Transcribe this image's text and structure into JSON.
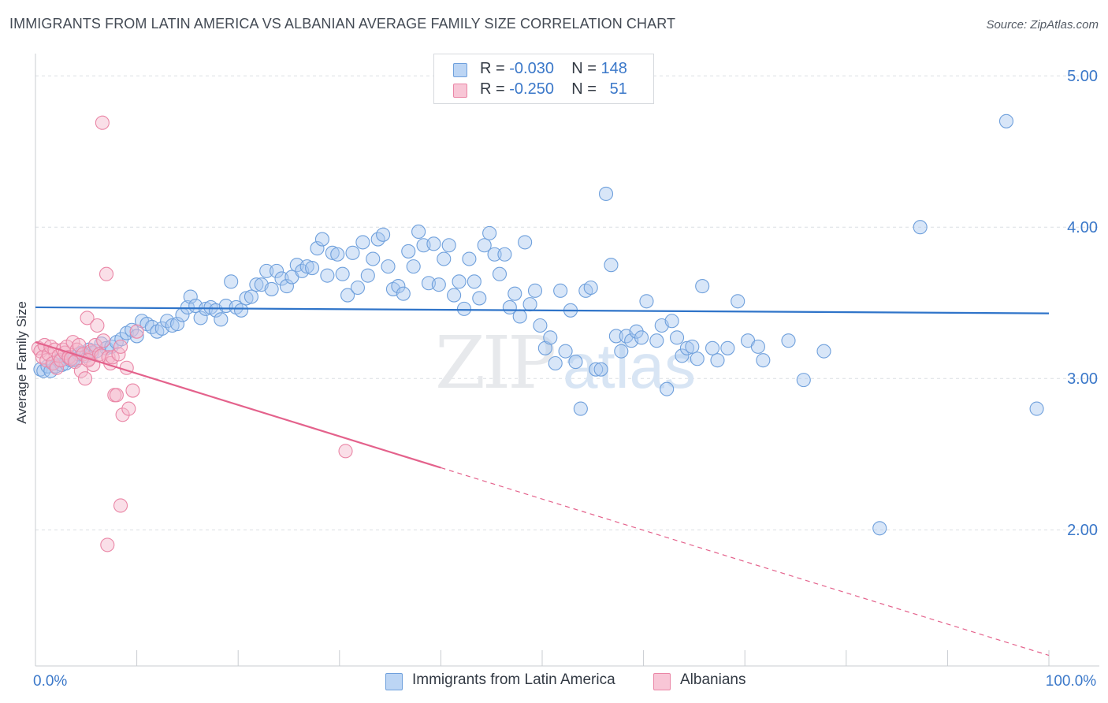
{
  "title": "IMMIGRANTS FROM LATIN AMERICA VS ALBANIAN AVERAGE FAMILY SIZE CORRELATION CHART",
  "source": "Source: ZipAtlas.com",
  "watermark": {
    "zip": "ZIP",
    "atlas": "atlas"
  },
  "colors": {
    "blue_fill": "#a8c8f0",
    "blue_stroke": "#6fa0dc",
    "blue_line": "#2f74c9",
    "pink_fill": "#f5b9cc",
    "pink_stroke": "#ea86a6",
    "pink_line": "#e4628c",
    "axis_text": "#3b78c9",
    "grid": "#dcdfe4"
  },
  "legend": {
    "rows": [
      {
        "r_label": "R =",
        "r_value": "-0.030",
        "n_label": "N =",
        "n_value": "148",
        "series": "blue"
      },
      {
        "r_label": "R =",
        "r_value": "-0.250",
        "n_label": "N =",
        "n_value": "51",
        "series": "pink"
      }
    ]
  },
  "bottom_legend": [
    {
      "label": "Immigrants from Latin America",
      "series": "blue"
    },
    {
      "label": "Albanians",
      "series": "pink"
    }
  ],
  "chart_data": {
    "type": "scatter",
    "title": "IMMIGRANTS FROM LATIN AMERICA VS ALBANIAN AVERAGE FAMILY SIZE CORRELATION CHART",
    "xlabel": "",
    "ylabel": "Average Family Size",
    "xlim": [
      0,
      100
    ],
    "ylim": [
      1.1,
      5.1
    ],
    "x_tick_labels": [
      {
        "value": 0,
        "label": "0.0%"
      },
      {
        "value": 100,
        "label": "100.0%"
      }
    ],
    "y_tick_labels": [
      {
        "value": 2.0,
        "label": "2.00"
      },
      {
        "value": 3.0,
        "label": "3.00"
      },
      {
        "value": 4.0,
        "label": "4.00"
      },
      {
        "value": 5.0,
        "label": "5.00"
      }
    ],
    "grid": true,
    "series": [
      {
        "name": "Immigrants from Latin America",
        "color": "blue",
        "trend": {
          "x": [
            0,
            100
          ],
          "y": [
            3.47,
            3.43
          ]
        },
        "points": [
          [
            0.5,
            3.06
          ],
          [
            0.8,
            3.05
          ],
          [
            1.2,
            3.08
          ],
          [
            1.5,
            3.05
          ],
          [
            1.8,
            3.1
          ],
          [
            2.0,
            3.08
          ],
          [
            2.3,
            3.12
          ],
          [
            2.6,
            3.09
          ],
          [
            3.0,
            3.1
          ],
          [
            3.2,
            3.14
          ],
          [
            3.5,
            3.12
          ],
          [
            3.8,
            3.13
          ],
          [
            4.0,
            3.12
          ],
          [
            4.3,
            3.16
          ],
          [
            4.6,
            3.17
          ],
          [
            5.0,
            3.15
          ],
          [
            5.3,
            3.19
          ],
          [
            5.6,
            3.17
          ],
          [
            6.0,
            3.18
          ],
          [
            6.5,
            3.23
          ],
          [
            7.0,
            3.2
          ],
          [
            7.5,
            3.21
          ],
          [
            8.0,
            3.24
          ],
          [
            8.5,
            3.26
          ],
          [
            9.0,
            3.3
          ],
          [
            9.5,
            3.32
          ],
          [
            10.0,
            3.28
          ],
          [
            10.5,
            3.38
          ],
          [
            11.0,
            3.36
          ],
          [
            11.5,
            3.34
          ],
          [
            12.0,
            3.31
          ],
          [
            12.5,
            3.33
          ],
          [
            13.0,
            3.38
          ],
          [
            13.5,
            3.35
          ],
          [
            14.0,
            3.36
          ],
          [
            14.5,
            3.42
          ],
          [
            15.0,
            3.47
          ],
          [
            15.3,
            3.54
          ],
          [
            15.8,
            3.48
          ],
          [
            16.3,
            3.4
          ],
          [
            16.8,
            3.46
          ],
          [
            17.3,
            3.47
          ],
          [
            17.8,
            3.45
          ],
          [
            18.3,
            3.39
          ],
          [
            18.8,
            3.48
          ],
          [
            19.3,
            3.64
          ],
          [
            19.8,
            3.47
          ],
          [
            20.3,
            3.45
          ],
          [
            20.8,
            3.53
          ],
          [
            21.3,
            3.54
          ],
          [
            21.8,
            3.62
          ],
          [
            22.3,
            3.62
          ],
          [
            22.8,
            3.71
          ],
          [
            23.3,
            3.59
          ],
          [
            23.8,
            3.71
          ],
          [
            24.3,
            3.66
          ],
          [
            24.8,
            3.61
          ],
          [
            25.3,
            3.67
          ],
          [
            25.8,
            3.75
          ],
          [
            26.3,
            3.71
          ],
          [
            26.8,
            3.74
          ],
          [
            27.3,
            3.73
          ],
          [
            27.8,
            3.86
          ],
          [
            28.3,
            3.92
          ],
          [
            28.8,
            3.68
          ],
          [
            29.3,
            3.83
          ],
          [
            29.8,
            3.82
          ],
          [
            30.3,
            3.69
          ],
          [
            30.8,
            3.55
          ],
          [
            31.3,
            3.83
          ],
          [
            31.8,
            3.6
          ],
          [
            32.3,
            3.9
          ],
          [
            32.8,
            3.68
          ],
          [
            33.3,
            3.79
          ],
          [
            33.8,
            3.92
          ],
          [
            34.3,
            3.95
          ],
          [
            34.8,
            3.74
          ],
          [
            35.3,
            3.59
          ],
          [
            35.8,
            3.61
          ],
          [
            36.3,
            3.56
          ],
          [
            36.8,
            3.84
          ],
          [
            37.3,
            3.74
          ],
          [
            37.8,
            3.97
          ],
          [
            38.3,
            3.88
          ],
          [
            38.8,
            3.63
          ],
          [
            39.3,
            3.89
          ],
          [
            39.8,
            3.62
          ],
          [
            40.3,
            3.79
          ],
          [
            40.8,
            3.88
          ],
          [
            41.3,
            3.55
          ],
          [
            41.8,
            3.64
          ],
          [
            42.3,
            3.46
          ],
          [
            42.8,
            3.79
          ],
          [
            43.3,
            3.64
          ],
          [
            43.8,
            3.53
          ],
          [
            44.3,
            3.88
          ],
          [
            44.8,
            3.96
          ],
          [
            45.3,
            3.82
          ],
          [
            45.8,
            3.69
          ],
          [
            46.3,
            3.82
          ],
          [
            46.8,
            3.47
          ],
          [
            47.3,
            3.56
          ],
          [
            47.8,
            3.41
          ],
          [
            48.3,
            3.9
          ],
          [
            48.8,
            3.49
          ],
          [
            49.3,
            3.58
          ],
          [
            49.8,
            3.35
          ],
          [
            50.3,
            3.2
          ],
          [
            50.8,
            3.27
          ],
          [
            51.3,
            3.1
          ],
          [
            51.8,
            3.58
          ],
          [
            52.3,
            3.18
          ],
          [
            52.8,
            3.45
          ],
          [
            53.3,
            3.11
          ],
          [
            53.8,
            2.8
          ],
          [
            54.3,
            3.58
          ],
          [
            54.8,
            3.6
          ],
          [
            55.3,
            3.06
          ],
          [
            55.8,
            3.06
          ],
          [
            56.3,
            4.22
          ],
          [
            56.8,
            3.75
          ],
          [
            57.3,
            3.28
          ],
          [
            57.8,
            3.18
          ],
          [
            58.3,
            3.28
          ],
          [
            58.8,
            3.25
          ],
          [
            59.3,
            3.31
          ],
          [
            59.8,
            3.27
          ],
          [
            60.3,
            3.51
          ],
          [
            61.3,
            3.25
          ],
          [
            61.8,
            3.35
          ],
          [
            62.3,
            2.93
          ],
          [
            62.8,
            3.38
          ],
          [
            63.3,
            3.27
          ],
          [
            63.8,
            3.15
          ],
          [
            64.3,
            3.2
          ],
          [
            64.8,
            3.21
          ],
          [
            65.3,
            3.13
          ],
          [
            65.8,
            3.61
          ],
          [
            66.8,
            3.2
          ],
          [
            67.3,
            3.12
          ],
          [
            68.3,
            3.2
          ],
          [
            69.3,
            3.51
          ],
          [
            70.3,
            3.25
          ],
          [
            71.3,
            3.21
          ],
          [
            71.8,
            3.12
          ],
          [
            75.8,
            2.99
          ],
          [
            77.8,
            3.18
          ],
          [
            87.3,
            4.0
          ],
          [
            83.3,
            2.01
          ],
          [
            95.8,
            4.7
          ],
          [
            98.8,
            2.8
          ],
          [
            74.3,
            3.25
          ]
        ]
      },
      {
        "name": "Albanians",
        "color": "pink",
        "trend": {
          "x": [
            0,
            40
          ],
          "y": [
            3.24,
            2.41
          ]
        },
        "trend_dashed": {
          "x": [
            40,
            100
          ],
          "y": [
            2.41,
            1.17
          ]
        },
        "points": [
          [
            0.3,
            3.2
          ],
          [
            0.5,
            3.18
          ],
          [
            0.7,
            3.14
          ],
          [
            0.9,
            3.22
          ],
          [
            1.1,
            3.12
          ],
          [
            1.3,
            3.16
          ],
          [
            1.5,
            3.21
          ],
          [
            1.7,
            3.1
          ],
          [
            1.9,
            3.19
          ],
          [
            2.1,
            3.07
          ],
          [
            2.3,
            3.15
          ],
          [
            2.5,
            3.12
          ],
          [
            2.7,
            3.19
          ],
          [
            2.9,
            3.17
          ],
          [
            3.1,
            3.21
          ],
          [
            3.3,
            3.14
          ],
          [
            3.5,
            3.13
          ],
          [
            3.7,
            3.24
          ],
          [
            3.9,
            3.11
          ],
          [
            4.1,
            3.19
          ],
          [
            4.3,
            3.22
          ],
          [
            4.5,
            3.05
          ],
          [
            4.7,
            3.16
          ],
          [
            4.9,
            3.0
          ],
          [
            5.1,
            3.4
          ],
          [
            5.3,
            3.13
          ],
          [
            5.5,
            3.18
          ],
          [
            5.7,
            3.09
          ],
          [
            5.9,
            3.22
          ],
          [
            6.1,
            3.35
          ],
          [
            6.3,
            3.16
          ],
          [
            5.2,
            3.12
          ],
          [
            6.5,
            3.15
          ],
          [
            6.7,
            3.25
          ],
          [
            7.0,
            3.69
          ],
          [
            7.2,
            3.14
          ],
          [
            7.4,
            3.1
          ],
          [
            7.6,
            3.14
          ],
          [
            7.8,
            2.89
          ],
          [
            8.0,
            2.89
          ],
          [
            8.2,
            3.16
          ],
          [
            8.4,
            3.21
          ],
          [
            8.6,
            2.76
          ],
          [
            9.0,
            3.07
          ],
          [
            9.2,
            2.8
          ],
          [
            9.6,
            2.92
          ],
          [
            10.0,
            3.31
          ],
          [
            6.6,
            4.69
          ],
          [
            7.1,
            1.9
          ],
          [
            8.4,
            2.16
          ],
          [
            30.6,
            2.52
          ]
        ]
      }
    ]
  }
}
